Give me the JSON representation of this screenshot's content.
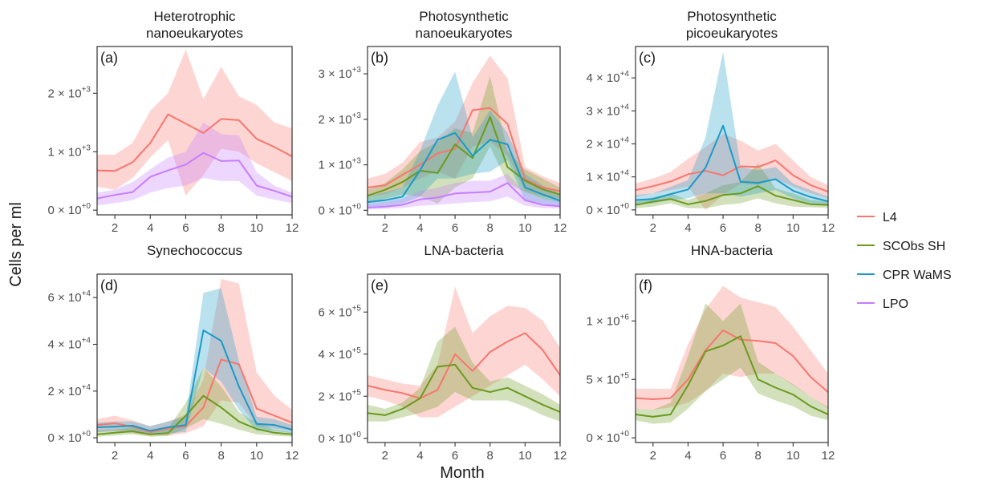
{
  "figure": {
    "xlabel": "Month",
    "ylabel": "Cells per ml"
  },
  "legend": [
    {
      "name": "L4",
      "color": "#F8766D"
    },
    {
      "name": "SCObs SH",
      "color": "#6B9A1E"
    },
    {
      "name": "CPR WaMS",
      "color": "#1B9AC8"
    },
    {
      "name": "LPO",
      "color": "#C77CFF"
    }
  ],
  "chart_data": [
    {
      "type": "line",
      "letter": "(a)",
      "title_lines": [
        "Heterotrophic",
        "nanoeukaryotes"
      ],
      "xlim": [
        1,
        12
      ],
      "x_ticks": [
        2,
        4,
        6,
        8,
        10,
        12
      ],
      "ylim": [
        -80,
        2800
      ],
      "y_ticks": [
        {
          "value": 0,
          "mant": "0",
          "exp": "+0"
        },
        {
          "value": 1000,
          "mant": "1",
          "exp": "+3"
        },
        {
          "value": 2000,
          "mant": "2",
          "exp": "+3"
        }
      ],
      "x": [
        1,
        2,
        3,
        4,
        5,
        6,
        7,
        8,
        9,
        10,
        11,
        12
      ],
      "series": [
        {
          "name": "L4",
          "color": "#F8766D",
          "values": [
            680,
            670,
            820,
            1150,
            1640,
            1480,
            1320,
            1560,
            1540,
            1220,
            1080,
            920
          ],
          "lower": [
            400,
            350,
            550,
            900,
            1200,
            250,
            600,
            1050,
            1000,
            800,
            650,
            500
          ],
          "upper": [
            950,
            950,
            1150,
            1700,
            2000,
            2750,
            1900,
            2450,
            1950,
            1800,
            1500,
            1400
          ]
        },
        {
          "name": "LPO",
          "color": "#C77CFF",
          "values": [
            200,
            260,
            310,
            570,
            680,
            780,
            980,
            840,
            850,
            420,
            330,
            230
          ],
          "lower": [
            80,
            120,
            170,
            300,
            380,
            420,
            550,
            500,
            500,
            250,
            180,
            120
          ],
          "upper": [
            300,
            350,
            480,
            700,
            900,
            1000,
            1500,
            1300,
            1280,
            650,
            420,
            300
          ]
        }
      ]
    },
    {
      "type": "line",
      "letter": "(b)",
      "title_lines": [
        "Photosynthetic",
        "nanoeukaryotes"
      ],
      "xlim": [
        1,
        12
      ],
      "x_ticks": [
        2,
        4,
        6,
        8,
        10,
        12
      ],
      "ylim": [
        -100,
        3600
      ],
      "y_ticks": [
        {
          "value": 0,
          "mant": "0",
          "exp": "+0"
        },
        {
          "value": 1000,
          "mant": "1",
          "exp": "+3"
        },
        {
          "value": 2000,
          "mant": "2",
          "exp": "+3"
        },
        {
          "value": 3000,
          "mant": "3",
          "exp": "+3"
        }
      ],
      "x": [
        1,
        2,
        3,
        4,
        5,
        6,
        7,
        8,
        9,
        10,
        11,
        12
      ],
      "series": [
        {
          "name": "L4",
          "color": "#F8766D",
          "values": [
            500,
            550,
            780,
            1000,
            1250,
            1350,
            2200,
            2250,
            1900,
            680,
            500,
            420
          ],
          "lower": [
            300,
            350,
            500,
            700,
            850,
            700,
            1400,
            1500,
            1200,
            400,
            300,
            250
          ],
          "upper": [
            700,
            800,
            1050,
            1500,
            1600,
            1950,
            2800,
            3400,
            2900,
            950,
            750,
            600
          ]
        },
        {
          "name": "SCObs SH",
          "color": "#6B9A1E",
          "values": [
            320,
            450,
            620,
            870,
            820,
            1450,
            1150,
            2050,
            950,
            650,
            460,
            350
          ],
          "lower": [
            150,
            250,
            350,
            300,
            150,
            500,
            700,
            1400,
            600,
            400,
            250,
            180
          ],
          "upper": [
            450,
            600,
            900,
            1300,
            1500,
            1800,
            1700,
            2950,
            1300,
            900,
            700,
            500
          ]
        },
        {
          "name": "CPR WaMS",
          "color": "#1B9AC8",
          "values": [
            180,
            220,
            300,
            880,
            1550,
            1700,
            1200,
            1550,
            1450,
            500,
            350,
            210
          ],
          "lower": [
            80,
            100,
            150,
            300,
            700,
            700,
            800,
            850,
            1100,
            200,
            150,
            80
          ],
          "upper": [
            300,
            400,
            500,
            1300,
            2300,
            3050,
            1600,
            2200,
            1700,
            800,
            550,
            350
          ]
        },
        {
          "name": "LPO",
          "color": "#C77CFF",
          "values": [
            60,
            80,
            120,
            240,
            280,
            370,
            390,
            410,
            600,
            220,
            120,
            90
          ],
          "lower": [
            20,
            30,
            50,
            100,
            120,
            150,
            180,
            200,
            300,
            100,
            50,
            40
          ],
          "upper": [
            150,
            180,
            260,
            420,
            500,
            600,
            650,
            650,
            800,
            400,
            250,
            200
          ]
        }
      ]
    },
    {
      "type": "line",
      "letter": "(c)",
      "title_lines": [
        "Photosynthetic",
        "picoeukaryotes"
      ],
      "xlim": [
        1,
        12
      ],
      "x_ticks": [
        2,
        4,
        6,
        8,
        10,
        12
      ],
      "ylim": [
        -1500,
        49500
      ],
      "y_ticks": [
        {
          "value": 0,
          "mant": "0",
          "exp": "+0"
        },
        {
          "value": 10000,
          "mant": "1",
          "exp": "+4"
        },
        {
          "value": 20000,
          "mant": "2",
          "exp": "+4"
        },
        {
          "value": 30000,
          "mant": "3",
          "exp": "+4"
        },
        {
          "value": 40000,
          "mant": "4",
          "exp": "+4"
        }
      ],
      "x": [
        1,
        2,
        3,
        4,
        5,
        6,
        7,
        8,
        9,
        10,
        11,
        12
      ],
      "series": [
        {
          "name": "L4",
          "color": "#F8766D",
          "values": [
            6000,
            7200,
            8600,
            10800,
            11800,
            10500,
            13200,
            13000,
            15000,
            10500,
            7500,
            5500
          ],
          "lower": [
            4000,
            5000,
            6000,
            7000,
            0,
            4500,
            8000,
            7500,
            9500,
            7000,
            5000,
            3500
          ],
          "upper": [
            8000,
            9500,
            11500,
            15500,
            19000,
            23000,
            21000,
            18000,
            20000,
            15000,
            10000,
            7500
          ]
        },
        {
          "name": "SCObs SH",
          "color": "#6B9A1E",
          "values": [
            1500,
            2500,
            3300,
            1700,
            2700,
            4500,
            5000,
            7200,
            4300,
            3000,
            1700,
            1500
          ],
          "lower": [
            500,
            1000,
            2000,
            500,
            500,
            1500,
            2000,
            3500,
            2000,
            1000,
            800,
            600
          ],
          "upper": [
            2500,
            3800,
            5000,
            3000,
            5000,
            7500,
            8500,
            14000,
            6500,
            5000,
            3000,
            2500
          ]
        },
        {
          "name": "CPR WaMS",
          "color": "#1B9AC8",
          "values": [
            3000,
            3300,
            4800,
            6200,
            12800,
            25500,
            8500,
            8200,
            9300,
            5800,
            3900,
            2600
          ],
          "lower": [
            1500,
            2000,
            3000,
            3500,
            5000,
            5000,
            4000,
            5000,
            6000,
            3500,
            2000,
            1500
          ],
          "upper": [
            4500,
            5000,
            7000,
            9000,
            22000,
            48000,
            13000,
            12000,
            13000,
            8000,
            6000,
            4000
          ]
        }
      ]
    },
    {
      "type": "line",
      "letter": "(d)",
      "title_lines": [
        "Synechococcus"
      ],
      "xlim": [
        1,
        12
      ],
      "x_ticks": [
        2,
        4,
        6,
        8,
        10,
        12
      ],
      "ylim": [
        -2000,
        70000
      ],
      "y_ticks": [
        {
          "value": 0,
          "mant": "0",
          "exp": "+0"
        },
        {
          "value": 20000,
          "mant": "2",
          "exp": "+4"
        },
        {
          "value": 40000,
          "mant": "4",
          "exp": "+4"
        },
        {
          "value": 60000,
          "mant": "6",
          "exp": "+4"
        }
      ],
      "x": [
        1,
        2,
        3,
        4,
        5,
        6,
        7,
        8,
        9,
        10,
        11,
        12
      ],
      "series": [
        {
          "name": "L4",
          "color": "#F8766D",
          "values": [
            5500,
            6200,
            4800,
            2500,
            4000,
            5000,
            13000,
            33500,
            31500,
            12500,
            9500,
            6500
          ],
          "lower": [
            2500,
            3000,
            2000,
            1000,
            1000,
            2000,
            5000,
            16000,
            15000,
            5000,
            4000,
            3000
          ],
          "upper": [
            8000,
            9500,
            7500,
            5000,
            7000,
            10000,
            25000,
            68000,
            66000,
            28000,
            18000,
            12000
          ]
        },
        {
          "name": "SCObs SH",
          "color": "#6B9A1E",
          "values": [
            1500,
            2200,
            2800,
            1500,
            2000,
            9500,
            18000,
            13000,
            7000,
            3800,
            2200,
            1500
          ],
          "lower": [
            500,
            1000,
            1500,
            500,
            800,
            4000,
            8000,
            6000,
            3500,
            1500,
            1000,
            500
          ],
          "upper": [
            3000,
            3500,
            4500,
            3000,
            4000,
            15000,
            30000,
            22000,
            11000,
            6500,
            3500,
            2500
          ]
        },
        {
          "name": "CPR WaMS",
          "color": "#1B9AC8",
          "values": [
            4500,
            4800,
            5200,
            3000,
            4500,
            5500,
            46000,
            41500,
            22000,
            6000,
            5500,
            3500
          ],
          "lower": [
            2500,
            3000,
            3000,
            1500,
            2000,
            2500,
            30000,
            24000,
            12000,
            3000,
            3000,
            2000
          ],
          "upper": [
            6500,
            7000,
            7000,
            5000,
            7000,
            9000,
            62000,
            64000,
            33000,
            9000,
            8000,
            5500
          ]
        }
      ]
    },
    {
      "type": "line",
      "letter": "(e)",
      "title_lines": [
        "LNA-bacteria"
      ],
      "xlim": [
        1,
        12
      ],
      "x_ticks": [
        2,
        4,
        6,
        8,
        10,
        12
      ],
      "ylim": [
        -20000,
        780000
      ],
      "y_ticks": [
        {
          "value": 0,
          "mant": "0",
          "exp": "+0"
        },
        {
          "value": 200000,
          "mant": "2",
          "exp": "+5"
        },
        {
          "value": 400000,
          "mant": "4",
          "exp": "+5"
        },
        {
          "value": 600000,
          "mant": "6",
          "exp": "+5"
        }
      ],
      "x": [
        1,
        2,
        3,
        4,
        5,
        6,
        7,
        8,
        9,
        10,
        11,
        12
      ],
      "series": [
        {
          "name": "L4",
          "color": "#F8766D",
          "values": [
            250000,
            230000,
            215000,
            190000,
            230000,
            400000,
            320000,
            410000,
            460000,
            500000,
            420000,
            300000
          ],
          "lower": [
            200000,
            180000,
            150000,
            100000,
            100000,
            150000,
            200000,
            250000,
            300000,
            350000,
            280000,
            200000
          ],
          "upper": [
            300000,
            280000,
            260000,
            250000,
            350000,
            720000,
            500000,
            580000,
            630000,
            620000,
            560000,
            430000
          ]
        },
        {
          "name": "SCObs SH",
          "color": "#6B9A1E",
          "values": [
            120000,
            110000,
            140000,
            190000,
            340000,
            350000,
            240000,
            220000,
            240000,
            200000,
            160000,
            125000
          ],
          "lower": [
            80000,
            80000,
            100000,
            120000,
            150000,
            220000,
            180000,
            180000,
            180000,
            150000,
            110000,
            80000
          ],
          "upper": [
            160000,
            140000,
            170000,
            240000,
            460000,
            530000,
            360000,
            270000,
            290000,
            250000,
            210000,
            160000
          ]
        }
      ]
    },
    {
      "type": "line",
      "letter": "(f)",
      "title_lines": [
        "HNA-bacteria"
      ],
      "xlim": [
        1,
        12
      ],
      "x_ticks": [
        2,
        4,
        6,
        8,
        10,
        12
      ],
      "ylim": [
        -40000,
        1400000
      ],
      "y_ticks": [
        {
          "value": 0,
          "mant": "0",
          "exp": "+0"
        },
        {
          "value": 500000,
          "mant": "5",
          "exp": "+5"
        },
        {
          "value": 1000000,
          "mant": "1",
          "exp": "+6"
        }
      ],
      "x": [
        1,
        2,
        3,
        4,
        5,
        6,
        7,
        8,
        9,
        10,
        11,
        12
      ],
      "series": [
        {
          "name": "L4",
          "color": "#F8766D",
          "values": [
            340000,
            330000,
            340000,
            500000,
            750000,
            920000,
            840000,
            830000,
            810000,
            700000,
            520000,
            390000
          ],
          "lower": [
            250000,
            240000,
            260000,
            300000,
            400000,
            550000,
            520000,
            550000,
            550000,
            450000,
            350000,
            250000
          ],
          "upper": [
            420000,
            420000,
            420000,
            800000,
            1100000,
            1300000,
            1200000,
            1160000,
            1120000,
            950000,
            750000,
            550000
          ]
        },
        {
          "name": "SCObs SH",
          "color": "#6B9A1E",
          "values": [
            200000,
            180000,
            200000,
            450000,
            740000,
            790000,
            870000,
            500000,
            430000,
            370000,
            270000,
            200000
          ],
          "lower": [
            150000,
            120000,
            130000,
            250000,
            400000,
            500000,
            600000,
            380000,
            320000,
            270000,
            190000,
            150000
          ],
          "upper": [
            250000,
            240000,
            300000,
            700000,
            1150000,
            1000000,
            1150000,
            650000,
            550000,
            460000,
            350000,
            260000
          ]
        }
      ]
    }
  ]
}
